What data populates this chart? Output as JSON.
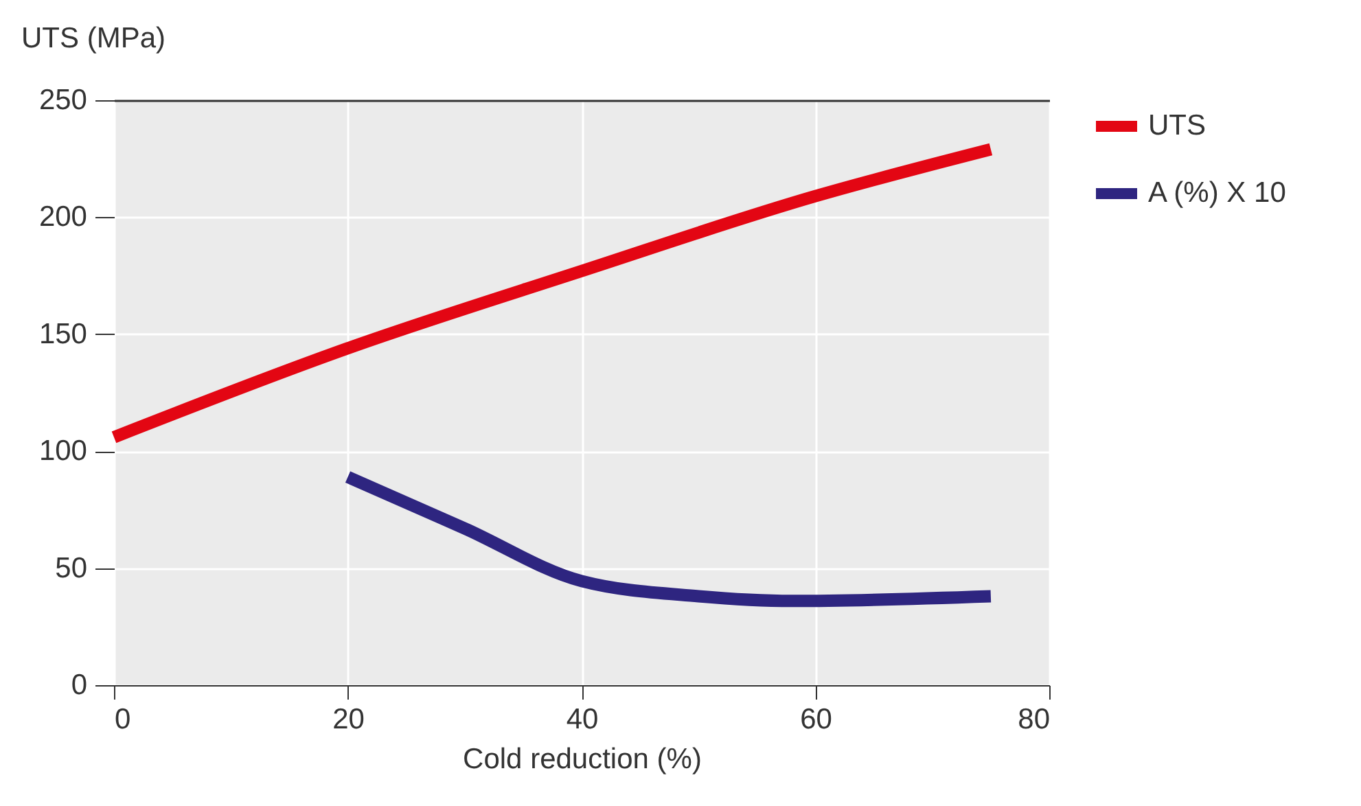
{
  "chart_data": {
    "type": "line",
    "xlabel": "Cold reduction (%)",
    "ylabel": "UTS (MPa)",
    "xlim": [
      0,
      80
    ],
    "xticks": [
      0,
      20,
      40,
      60,
      80
    ],
    "ylim": [
      0,
      250
    ],
    "yticks": [
      0,
      50,
      100,
      150,
      200,
      250
    ],
    "grid": true,
    "legend": "right",
    "marker": "none",
    "line_style": "solid",
    "series": [
      {
        "name": "UTS",
        "color": "#e30613",
        "x": [
          0,
          20,
          40,
          60,
          75
        ],
        "values": [
          106,
          144,
          177,
          209,
          229
        ]
      },
      {
        "name": "A (%) X 10",
        "color": "#2e2580",
        "x": [
          20,
          30,
          40,
          50,
          58,
          75
        ],
        "values": [
          89,
          67,
          44.5,
          38,
          36,
          38
        ]
      }
    ]
  }
}
